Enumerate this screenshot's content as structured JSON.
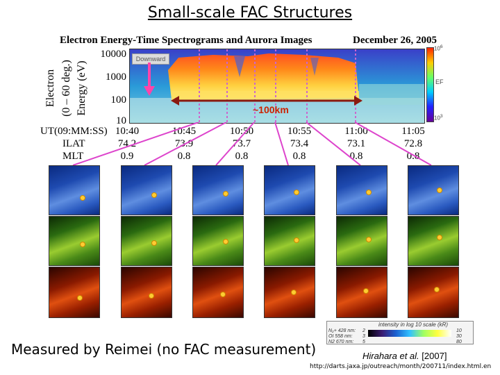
{
  "title": "Small-scale FAC Structures",
  "figure": {
    "chart_title": "Electron Energy-Time Spectrograms and Aurora Images",
    "date": "December 26, 2005",
    "y_axis": {
      "label_outer": "Electron",
      "label_range": "(0 – 60 deg.)",
      "label_inner": "Energy (eV)",
      "ticks": [
        "10000",
        "1000",
        "100",
        "10"
      ]
    },
    "colorbar": {
      "top": "10",
      "top_exp": "6",
      "bottom": "10",
      "bottom_exp": "3",
      "label": "EF"
    },
    "annotations": {
      "downward": "Downward",
      "distance": "~100km"
    },
    "rows": [
      {
        "label": "UT(09:MM:SS)",
        "values": [
          "10:40",
          "10:45",
          "10:50",
          "10:55",
          "11:00",
          "11:05"
        ]
      },
      {
        "label": "ILAT",
        "values": [
          "74.2",
          "73.9",
          "73.7",
          "73.4",
          "73.1",
          "72.8"
        ]
      },
      {
        "label": "MLT",
        "values": [
          "0.9",
          "0.8",
          "0.8",
          "0.8",
          "0.8",
          "0.8"
        ]
      }
    ],
    "colorscale": {
      "title": "intensity in log 10 scale (kR)",
      "lines": [
        {
          "name": "N₂+ 428 nm:",
          "min": "2",
          "max": "10"
        },
        {
          "name": "OI 558 nm:",
          "min": "3",
          "max": "30"
        },
        {
          "name": "N2 670 nm:",
          "min": "5",
          "max": "80"
        }
      ]
    }
  },
  "caption": "Measured by Reimei (no FAC measurement)",
  "citation": {
    "authors": "Hirahara et al.",
    "year": "[2007]"
  },
  "url": "http://darts.jaxa.jp/outreach/month/200711/index.html.en"
}
